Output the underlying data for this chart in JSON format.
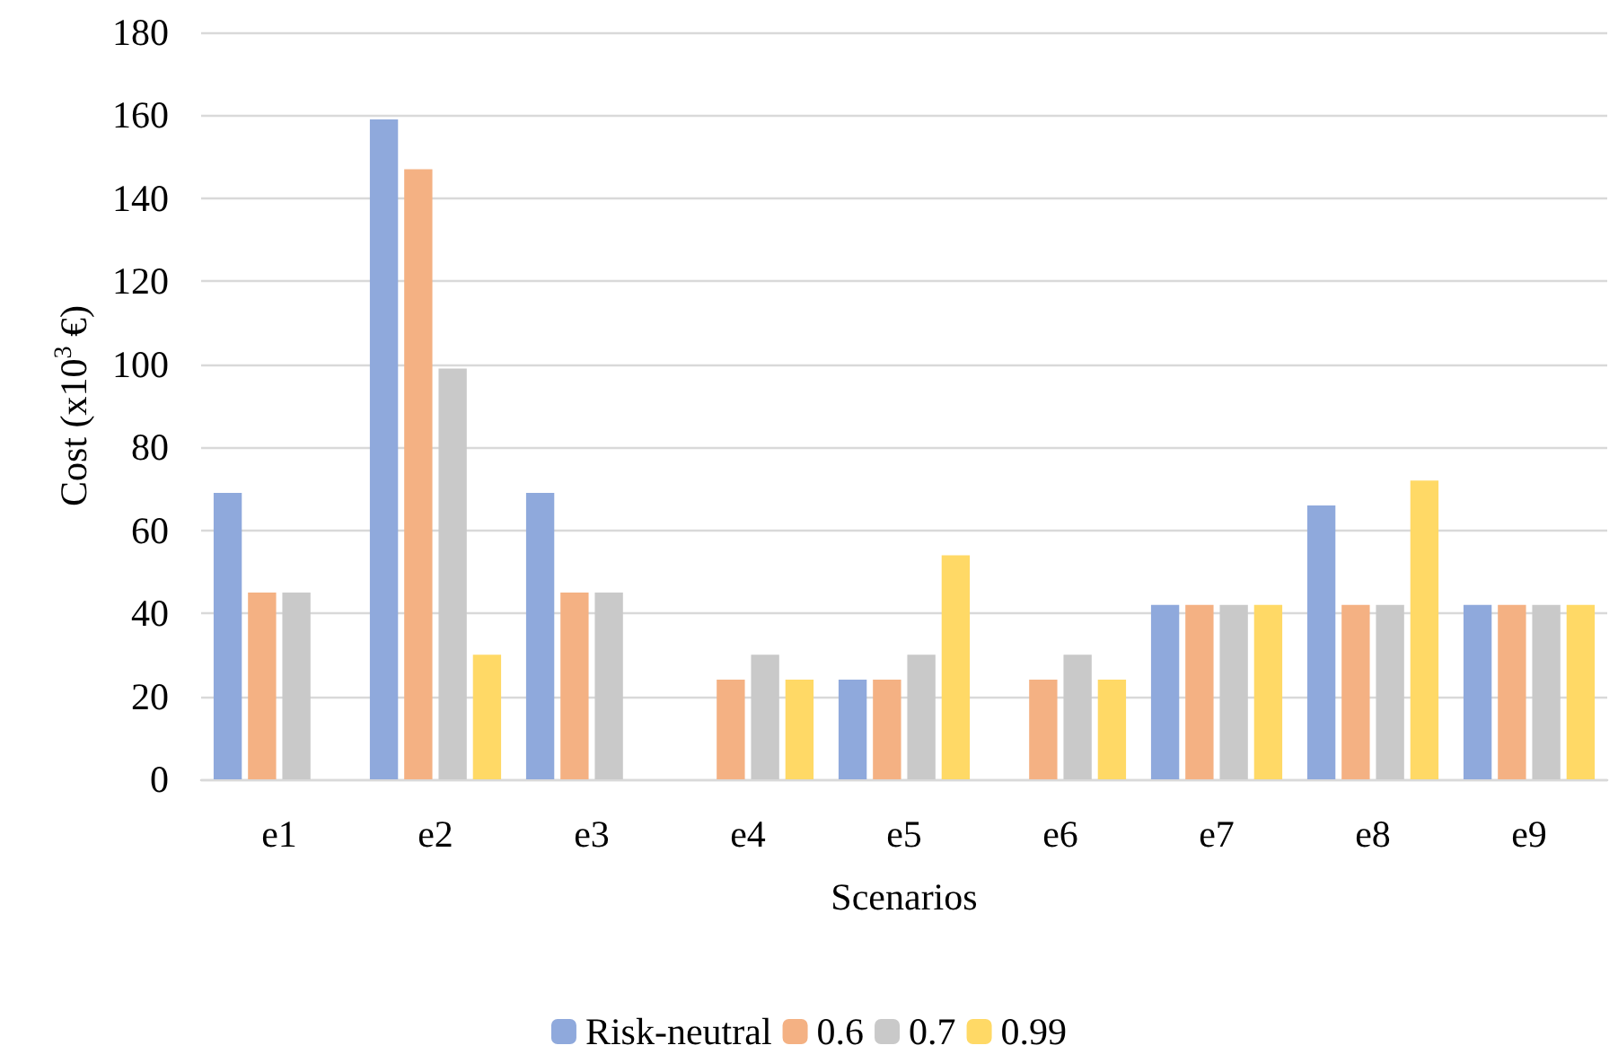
{
  "chart_data": {
    "type": "bar",
    "xlabel": "Scenarios",
    "ylabel": "Cost (x10$^{3}$ €)",
    "categories": [
      "e1",
      "e2",
      "e3",
      "e4",
      "e5",
      "e6",
      "e7",
      "e8",
      "e9"
    ],
    "series": [
      {
        "name": "Risk-neutral",
        "color": "#8fa9dc",
        "values": [
          69,
          159,
          69,
          0,
          24,
          0,
          42,
          66,
          42
        ]
      },
      {
        "name": "0.6",
        "color": "#f4b183",
        "values": [
          45,
          147,
          45,
          24,
          24,
          24,
          42,
          42,
          42
        ]
      },
      {
        "name": "0.7",
        "color": "#c9c9c9",
        "values": [
          45,
          99,
          45,
          30,
          30,
          30,
          42,
          42,
          42
        ]
      },
      {
        "name": "0.99",
        "color": "#ffd966",
        "values": [
          0,
          30,
          0,
          24,
          54,
          24,
          42,
          72,
          42
        ]
      }
    ],
    "ylim": [
      0,
      180
    ],
    "yticks": [
      0,
      20,
      40,
      60,
      80,
      100,
      120,
      140,
      160,
      180
    ],
    "grid": "y",
    "legend": "bottom"
  }
}
